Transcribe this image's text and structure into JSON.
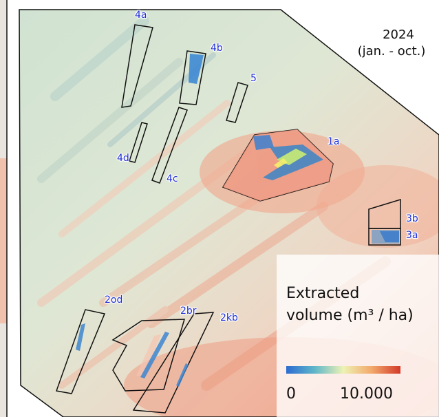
{
  "map": {
    "period_year": "2024",
    "period_months": "(jan. - oct.)",
    "areas": [
      {
        "id": "4a"
      },
      {
        "id": "4b"
      },
      {
        "id": "5"
      },
      {
        "id": "4d"
      },
      {
        "id": "4c"
      },
      {
        "id": "1a"
      },
      {
        "id": "3b"
      },
      {
        "id": "3a"
      },
      {
        "id": "2od"
      },
      {
        "id": "2br"
      },
      {
        "id": "2kb"
      }
    ],
    "legend": {
      "title_line1": "Extracted",
      "title_line2": "volume (m³ / ha)",
      "min_label": "0",
      "max_label": "10.000",
      "colors": [
        "#2c6bd1",
        "#5fb7c9",
        "#eef2b4",
        "#f2a86a",
        "#d23a2a"
      ]
    }
  }
}
